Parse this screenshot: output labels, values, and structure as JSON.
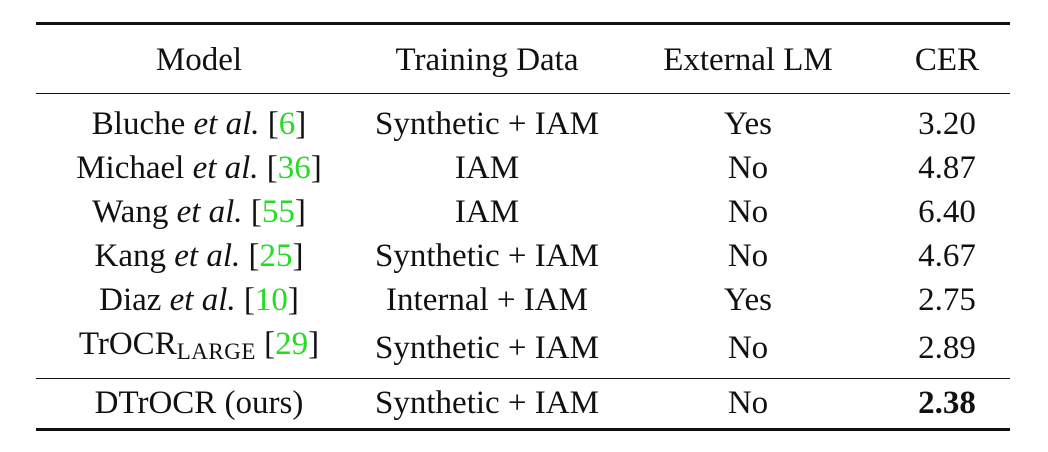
{
  "table": {
    "headers": [
      "Model",
      "Training Data",
      "External LM",
      "CER"
    ],
    "rows": [
      {
        "model_name": "Bluche",
        "et_al": "et al.",
        "ref": "6",
        "training_data": "Synthetic + IAM",
        "external_lm": "Yes",
        "cer": "3.20"
      },
      {
        "model_name": "Michael",
        "et_al": "et al.",
        "ref": "36",
        "training_data": "IAM",
        "external_lm": "No",
        "cer": "4.87"
      },
      {
        "model_name": "Wang",
        "et_al": "et al.",
        "ref": "55",
        "training_data": "IAM",
        "external_lm": "No",
        "cer": "6.40"
      },
      {
        "model_name": "Kang",
        "et_al": "et al.",
        "ref": "25",
        "training_data": "Synthetic + IAM",
        "external_lm": "No",
        "cer": "4.67"
      },
      {
        "model_name": "Diaz",
        "et_al": "et al.",
        "ref": "10",
        "training_data": "Internal + IAM",
        "external_lm": "Yes",
        "cer": "2.75"
      },
      {
        "model_name": "TrOCR",
        "subscript": "LARGE",
        "ref": "29",
        "training_data": "Synthetic + IAM",
        "external_lm": "No",
        "cer": "2.89"
      }
    ],
    "ours": {
      "model_name": "DTrOCR (ours)",
      "training_data": "Synthetic + IAM",
      "external_lm": "No",
      "cer": "2.38"
    }
  }
}
